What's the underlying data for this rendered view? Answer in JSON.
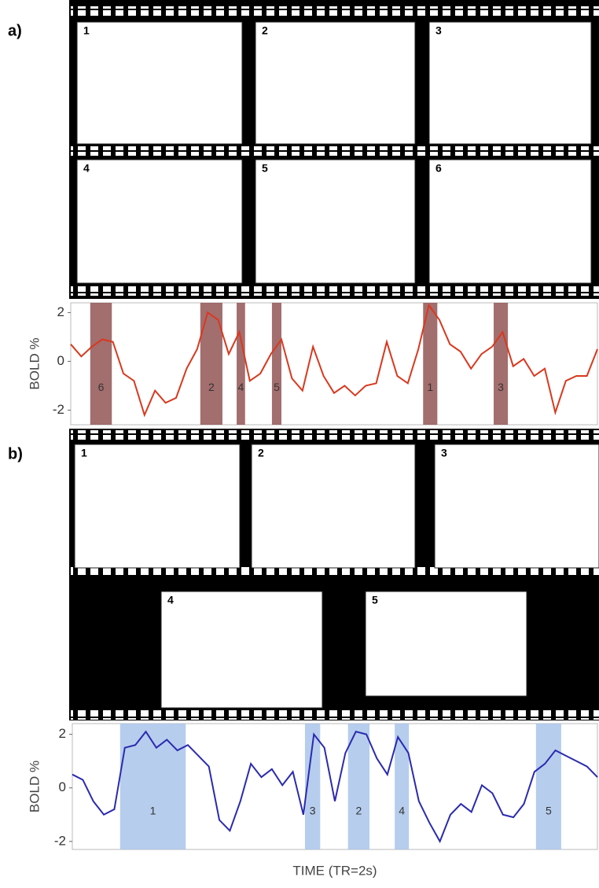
{
  "panels": [
    {
      "label": "a)",
      "frames": [
        "1",
        "2",
        "3",
        "4",
        "5",
        "6"
      ]
    },
    {
      "label": "b)",
      "frames": [
        "1",
        "2",
        "3",
        "4",
        "5"
      ]
    }
  ],
  "chart_data": [
    {
      "type": "line",
      "ylabel": "BOLD %",
      "xlim": [
        0,
        100
      ],
      "ylim": [
        -2.6,
        2.4
      ],
      "yticks": [
        -2,
        0,
        2
      ],
      "x": [
        0,
        2,
        4,
        6,
        8,
        10,
        12,
        14,
        16,
        18,
        20,
        22,
        24,
        26,
        28,
        30,
        32,
        34,
        36,
        38,
        40,
        42,
        44,
        46,
        48,
        50,
        52,
        54,
        56,
        58,
        60,
        62,
        64,
        66,
        68,
        70,
        72,
        74,
        76,
        78,
        80,
        82,
        84,
        86,
        88,
        90,
        92,
        94,
        96,
        98,
        100
      ],
      "series": [
        {
          "color": "#d9381e",
          "values": [
            0.7,
            0.2,
            0.6,
            0.9,
            0.8,
            -0.5,
            -0.8,
            -2.2,
            -1.2,
            -1.7,
            -1.5,
            -0.3,
            0.5,
            2.0,
            1.7,
            0.3,
            1.2,
            -0.8,
            -0.5,
            0.3,
            0.9,
            -0.7,
            -1.2,
            0.6,
            -0.6,
            -1.3,
            -1.0,
            -1.4,
            -1.0,
            -0.9,
            0.8,
            -0.6,
            -0.9,
            0.5,
            2.3,
            1.7,
            0.7,
            0.4,
            -0.3,
            0.3,
            0.6,
            1.2,
            -0.2,
            0.1,
            -0.6,
            -0.3,
            -2.1,
            -0.8,
            -0.6,
            -0.6,
            0.5
          ]
        }
      ],
      "region_color": "#8c4a4a",
      "regions": [
        {
          "label": "6",
          "start": 3.7,
          "end": 7.8
        },
        {
          "label": "2",
          "start": 24.6,
          "end": 28.8
        },
        {
          "label": "4",
          "start": 31.5,
          "end": 33.1
        },
        {
          "label": "5",
          "start": 38.2,
          "end": 40
        },
        {
          "label": "1",
          "start": 66.9,
          "end": 69.6
        },
        {
          "label": "3",
          "start": 80.3,
          "end": 83
        }
      ]
    },
    {
      "type": "line",
      "ylabel": "BOLD %",
      "xlabel": "TIME (TR=2s)",
      "xlim": [
        0,
        100
      ],
      "ylim": [
        -2.3,
        2.4
      ],
      "yticks": [
        -2,
        0,
        2
      ],
      "x": [
        0,
        2,
        4,
        6,
        8,
        10,
        12,
        14,
        16,
        18,
        20,
        22,
        24,
        26,
        28,
        30,
        32,
        34,
        36,
        38,
        40,
        42,
        44,
        46,
        48,
        50,
        52,
        54,
        56,
        58,
        60,
        62,
        64,
        66,
        68,
        70,
        72,
        74,
        76,
        78,
        80,
        82,
        84,
        86,
        88,
        90,
        92,
        94,
        96,
        98,
        100
      ],
      "series": [
        {
          "color": "#2a2ab0",
          "values": [
            0.5,
            0.3,
            -0.5,
            -1.0,
            -0.8,
            1.5,
            1.6,
            2.1,
            1.5,
            1.8,
            1.4,
            1.6,
            1.2,
            0.8,
            -1.2,
            -1.6,
            -0.5,
            0.9,
            0.4,
            0.7,
            0.1,
            0.6,
            -1.0,
            2.0,
            1.5,
            -0.5,
            1.3,
            2.1,
            2.0,
            1.1,
            0.5,
            1.9,
            1.3,
            -0.5,
            -1.3,
            -2.0,
            -1.0,
            -0.6,
            -0.9,
            0.1,
            -0.2,
            -1.0,
            -1.1,
            -0.6,
            0.6,
            0.9,
            1.4,
            1.2,
            1.0,
            0.8,
            0.4
          ]
        }
      ],
      "region_color": "#a9c4ea",
      "regions": [
        {
          "label": "1",
          "start": 9.1,
          "end": 21.6
        },
        {
          "label": "3",
          "start": 44.3,
          "end": 47.2
        },
        {
          "label": "2",
          "start": 52.5,
          "end": 56.6
        },
        {
          "label": "4",
          "start": 61.4,
          "end": 64.1
        },
        {
          "label": "5",
          "start": 88.3,
          "end": 93.1
        }
      ]
    }
  ]
}
